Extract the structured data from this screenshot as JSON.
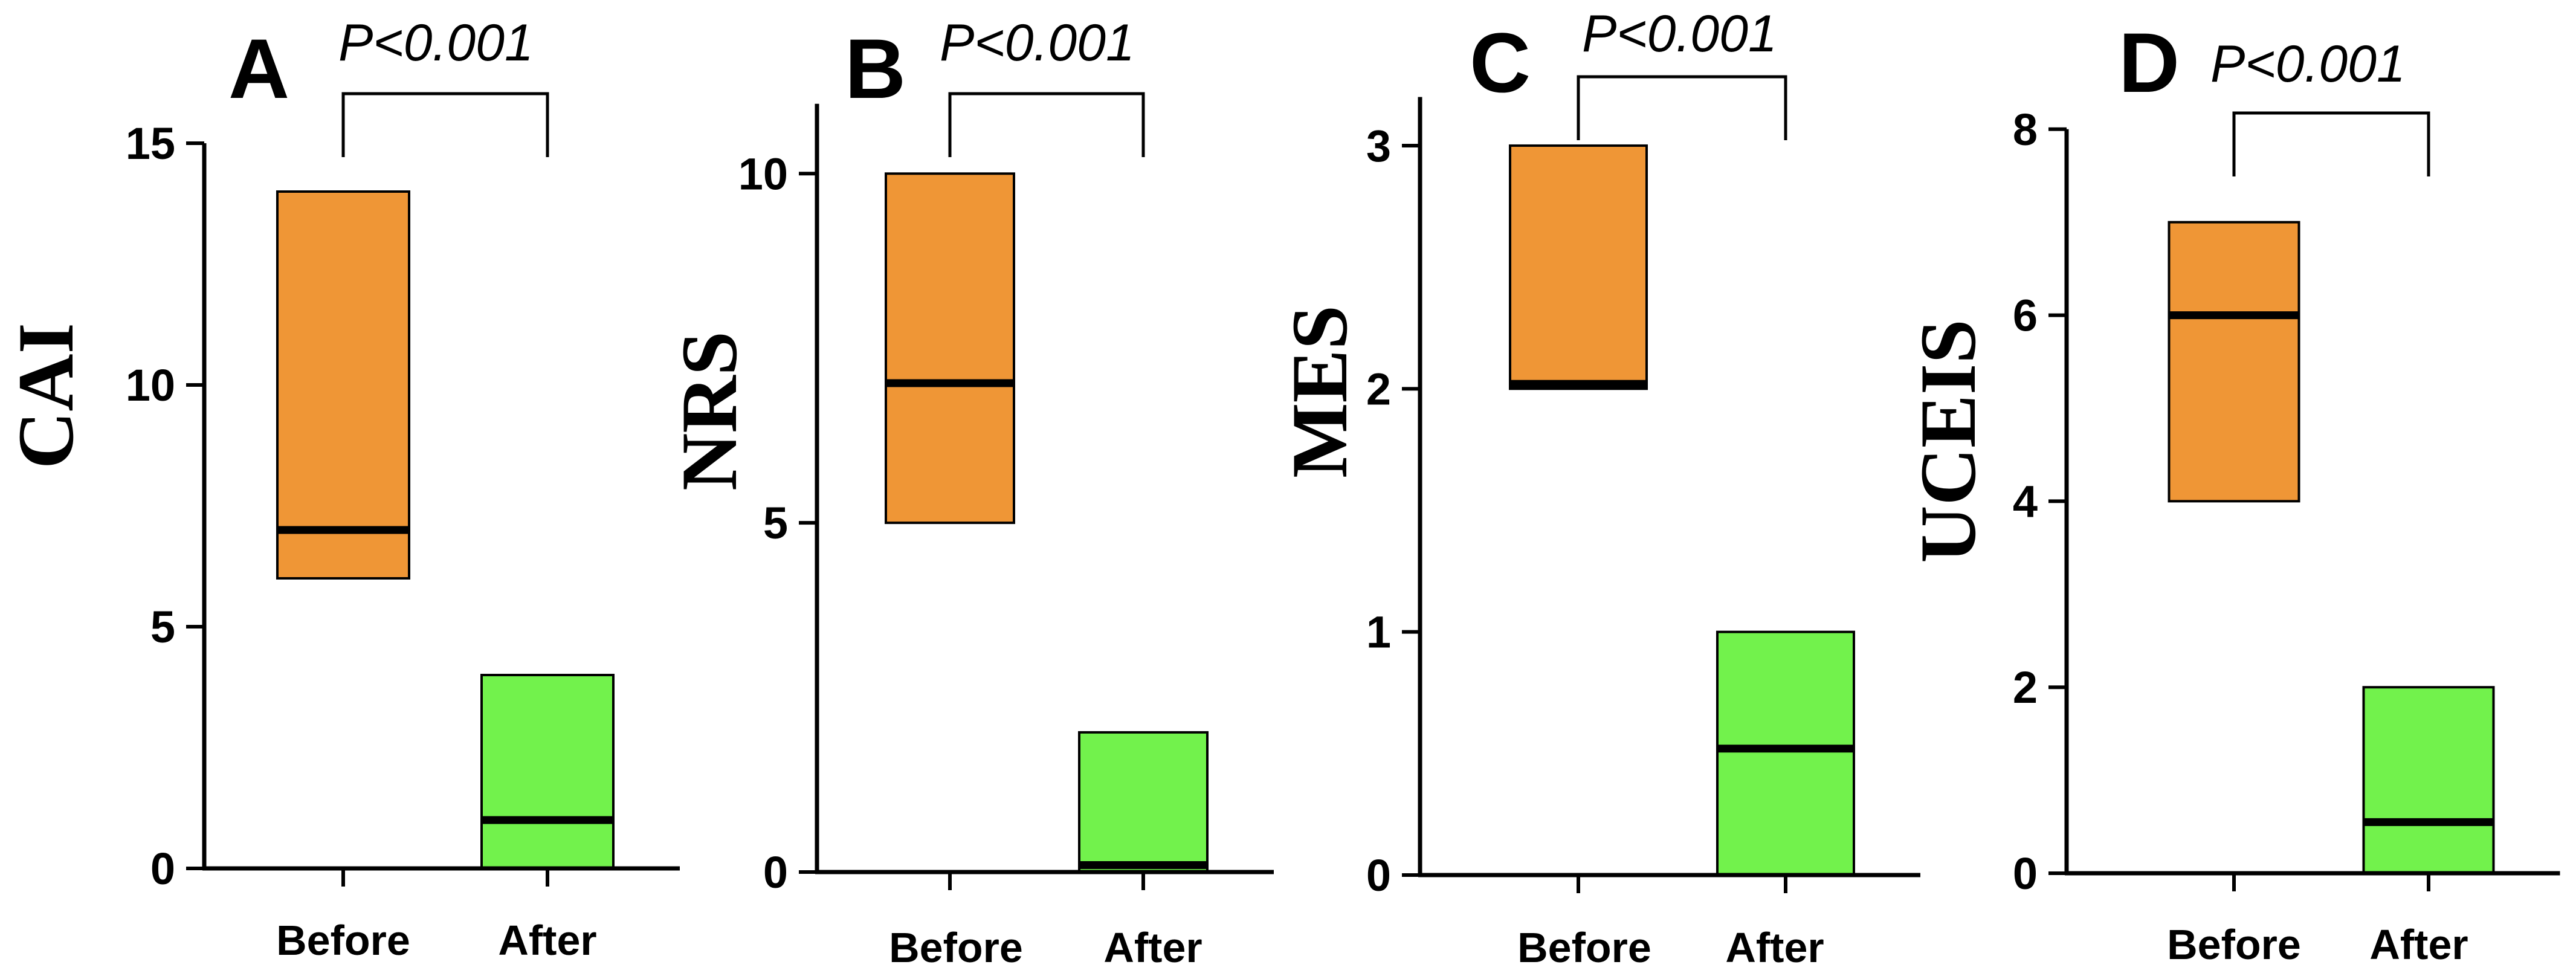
{
  "colors": {
    "before_fill": "#EF9636",
    "after_fill": "#72F24C",
    "stroke": "#000000"
  },
  "chart_data": [
    {
      "type": "box",
      "panel": "A",
      "ylabel": "CAI",
      "categories": [
        "Before",
        "After"
      ],
      "ylim": [
        0,
        15
      ],
      "yticks": [
        0,
        5,
        10,
        15
      ],
      "boxes": [
        {
          "name": "Before",
          "min": 6,
          "median": 7,
          "max": 14
        },
        {
          "name": "After",
          "min": 0,
          "median": 1,
          "max": 4
        }
      ],
      "annotation": "P<0.001"
    },
    {
      "type": "box",
      "panel": "B",
      "ylabel": "NRS",
      "categories": [
        "Before",
        "After"
      ],
      "ylim": [
        0,
        11
      ],
      "yticks": [
        0,
        5,
        10
      ],
      "boxes": [
        {
          "name": "Before",
          "min": 5,
          "median": 7,
          "max": 10
        },
        {
          "name": "After",
          "min": 0,
          "median": 0.1,
          "max": 2
        }
      ],
      "annotation": "P<0.001"
    },
    {
      "type": "box",
      "panel": "C",
      "ylabel": "MES",
      "categories": [
        "Before",
        "After"
      ],
      "ylim": [
        0,
        3.2
      ],
      "yticks": [
        0,
        1,
        2,
        3
      ],
      "boxes": [
        {
          "name": "Before",
          "min": 2,
          "median": 2.02,
          "max": 3
        },
        {
          "name": "After",
          "min": 0,
          "median": 0.52,
          "max": 1
        }
      ],
      "annotation": "P<0.001"
    },
    {
      "type": "box",
      "panel": "D",
      "ylabel": "UCEIS",
      "categories": [
        "Before",
        "After"
      ],
      "ylim": [
        0,
        8
      ],
      "yticks": [
        0,
        2,
        4,
        6,
        8
      ],
      "boxes": [
        {
          "name": "Before",
          "min": 4,
          "median": 6,
          "max": 7
        },
        {
          "name": "After",
          "min": 0,
          "median": 0.55,
          "max": 2
        }
      ],
      "annotation": "P<0.001"
    }
  ]
}
